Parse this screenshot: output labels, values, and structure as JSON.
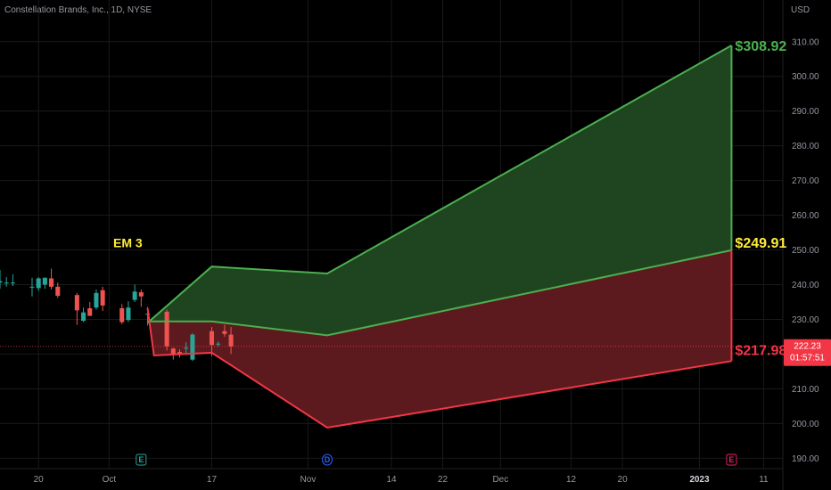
{
  "header": {
    "ticker": "Constellation Brands, Inc., 1D, NYSE",
    "currency": "USD"
  },
  "chart_data": {
    "type": "candlestick",
    "title": "",
    "y_ticks": [
      190,
      200,
      210,
      220,
      230,
      240,
      250,
      260,
      270,
      280,
      290,
      300,
      310
    ],
    "y_tick_labels": [
      "190.00",
      "200.00",
      "210.00",
      "220.00",
      "230.00",
      "240.00",
      "250.00",
      "260.00",
      "270.00",
      "280.00",
      "290.00",
      "300.00",
      "310.00"
    ],
    "ylim": [
      187,
      322
    ],
    "xlim": [
      "2022-09-14",
      "2023-01-14"
    ],
    "x_ticks": [
      {
        "date": "2022-09-20",
        "label": "20",
        "bold": false
      },
      {
        "date": "2022-10-01",
        "label": "Oct",
        "bold": false
      },
      {
        "date": "2022-10-17",
        "label": "17",
        "bold": false
      },
      {
        "date": "2022-11-01",
        "label": "Nov",
        "bold": false
      },
      {
        "date": "2022-11-14",
        "label": "14",
        "bold": false
      },
      {
        "date": "2022-11-22",
        "label": "22",
        "bold": false
      },
      {
        "date": "2022-12-01",
        "label": "Dec",
        "bold": false
      },
      {
        "date": "2022-12-12",
        "label": "12",
        "bold": false
      },
      {
        "date": "2022-12-20",
        "label": "20",
        "bold": false
      },
      {
        "date": "2023-01-01",
        "label": "2023",
        "bold": true
      },
      {
        "date": "2023-01-11",
        "label": "11",
        "bold": false
      }
    ],
    "candles": [
      {
        "date": "2022-09-14",
        "open": 240.6,
        "high": 244.2,
        "low": 238.8,
        "close": 241.0
      },
      {
        "date": "2022-09-15",
        "open": 240.6,
        "high": 242.2,
        "low": 239.4,
        "close": 240.6
      },
      {
        "date": "2022-09-16",
        "open": 240.6,
        "high": 243.0,
        "low": 239.6,
        "close": 240.6
      },
      {
        "date": "2022-09-19",
        "open": 239.4,
        "high": 242.0,
        "low": 236.6,
        "close": 239.4
      },
      {
        "date": "2022-09-20",
        "open": 239.0,
        "high": 242.2,
        "low": 238.2,
        "close": 241.8
      },
      {
        "date": "2022-09-21",
        "open": 240.0,
        "high": 242.0,
        "low": 238.8,
        "close": 242.0
      },
      {
        "date": "2022-09-22",
        "open": 241.8,
        "high": 244.6,
        "low": 238.6,
        "close": 239.4
      },
      {
        "date": "2022-09-23",
        "open": 239.4,
        "high": 240.6,
        "low": 236.2,
        "close": 236.8
      },
      {
        "date": "2022-09-26",
        "open": 237.0,
        "high": 237.6,
        "low": 228.4,
        "close": 232.6
      },
      {
        "date": "2022-09-27",
        "open": 229.6,
        "high": 233.4,
        "low": 229.2,
        "close": 232.0
      },
      {
        "date": "2022-09-28",
        "open": 233.2,
        "high": 235.0,
        "low": 231.8,
        "close": 231.0
      },
      {
        "date": "2022-09-29",
        "open": 233.4,
        "high": 238.6,
        "low": 232.8,
        "close": 237.6
      },
      {
        "date": "2022-09-30",
        "open": 238.4,
        "high": 239.4,
        "low": 232.4,
        "close": 234.0
      },
      {
        "date": "2022-10-03",
        "open": 233.2,
        "high": 234.4,
        "low": 228.6,
        "close": 229.2
      },
      {
        "date": "2022-10-04",
        "open": 229.8,
        "high": 235.2,
        "low": 229.2,
        "close": 233.4
      },
      {
        "date": "2022-10-05",
        "open": 235.6,
        "high": 240.0,
        "low": 235.0,
        "close": 238.0
      },
      {
        "date": "2022-10-06",
        "open": 237.8,
        "high": 238.6,
        "low": 233.6,
        "close": 236.6
      },
      {
        "date": "2022-10-07",
        "open": 231.4,
        "high": 233.6,
        "low": 228.2,
        "close": 231.6
      },
      {
        "date": "2022-10-10",
        "open": 232.2,
        "high": 232.8,
        "low": 221.0,
        "close": 222.2
      },
      {
        "date": "2022-10-11",
        "open": 221.6,
        "high": 221.8,
        "low": 218.4,
        "close": 220.0
      },
      {
        "date": "2022-10-12",
        "open": 220.6,
        "high": 221.4,
        "low": 219.0,
        "close": 219.8
      },
      {
        "date": "2022-10-13",
        "open": 221.8,
        "high": 223.4,
        "low": 220.0,
        "close": 221.8
      },
      {
        "date": "2022-10-14",
        "open": 218.4,
        "high": 226.0,
        "low": 218.0,
        "close": 225.6
      },
      {
        "date": "2022-10-17",
        "open": 226.6,
        "high": 227.8,
        "low": 219.4,
        "close": 222.6
      },
      {
        "date": "2022-10-18",
        "open": 222.8,
        "high": 223.6,
        "low": 222.2,
        "close": 223.0
      },
      {
        "date": "2022-10-19",
        "open": 226.6,
        "high": 228.4,
        "low": 225.0,
        "close": 225.8
      },
      {
        "date": "2022-10-20",
        "open": 225.6,
        "high": 227.8,
        "low": 220.0,
        "close": 222.2
      }
    ],
    "expected_move": {
      "label": "EM 3",
      "upper": [
        {
          "date": "2022-10-07",
          "value": 229.0
        },
        {
          "date": "2022-10-17",
          "value": 245.2
        },
        {
          "date": "2022-11-04",
          "value": 243.2
        },
        {
          "date": "2023-01-06",
          "value": 308.92
        }
      ],
      "mid": [
        {
          "date": "2022-10-07",
          "value": 229.4
        },
        {
          "date": "2022-10-17",
          "value": 229.4
        },
        {
          "date": "2022-11-04",
          "value": 225.4
        },
        {
          "date": "2023-01-06",
          "value": 249.91
        }
      ],
      "lower": [
        {
          "date": "2022-10-07",
          "value": 233.2
        },
        {
          "date": "2022-10-08",
          "value": 219.6
        },
        {
          "date": "2022-10-17",
          "value": 220.4
        },
        {
          "date": "2022-11-04",
          "value": 198.8
        },
        {
          "date": "2023-01-06",
          "value": 217.98
        }
      ],
      "upper_label": "$308.92",
      "mid_label": "$249.91",
      "lower_label": "$217.98",
      "colors": {
        "upper_line": "#4caf50",
        "upper_fill": "#1f4420",
        "mid_line": "#4caf50",
        "lower_line": "#f23645",
        "lower_fill": "#5c1a1f",
        "upper_text": "#4caf50",
        "mid_text": "#ffeb3b",
        "lower_text": "#f23645"
      }
    },
    "current_price": {
      "value": 222.23,
      "label": "222.23",
      "countdown": "01:57:51",
      "color": "#f23645"
    },
    "events": [
      {
        "date": "2022-10-06",
        "letter": "E",
        "color": "#26a69a"
      },
      {
        "date": "2022-11-04",
        "letter": "D",
        "color": "#2962ff"
      },
      {
        "date": "2023-01-06",
        "letter": "E",
        "color": "#e91e63"
      }
    ],
    "colors": {
      "up": "#26a69a",
      "down": "#ef5350",
      "grid": "#1a1a1a"
    }
  }
}
